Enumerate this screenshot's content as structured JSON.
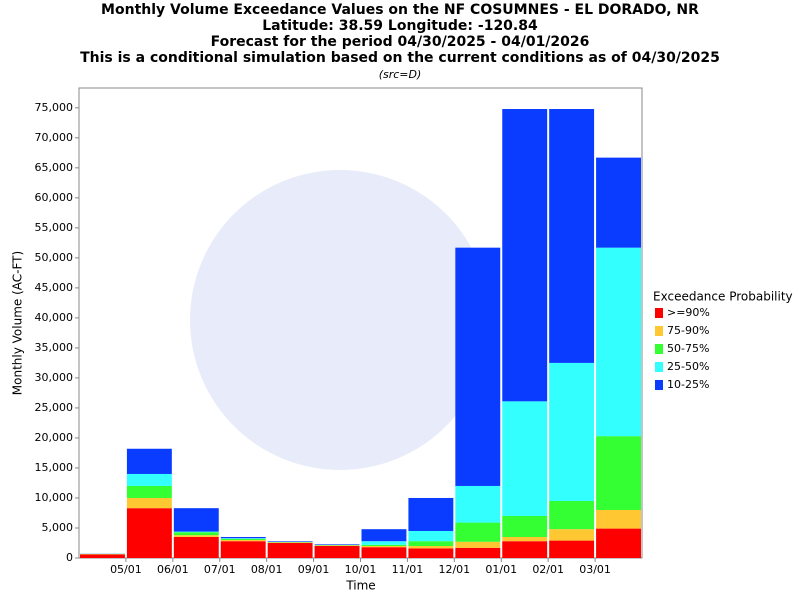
{
  "chart_data": {
    "type": "stacked_bar",
    "title": [
      "Monthly Volume Exceedance Values on the NF COSUMNES - EL DORADO, NR",
      "Latitude: 38.59 Longitude: -120.84",
      "Forecast for the period 04/30/2025 - 04/01/2026",
      "This is a conditional simulation based on the current conditions as of 04/30/2025"
    ],
    "subtitle": "(src=D)",
    "x_label": "Time",
    "y_label": "Monthly Volume (AC-FT)",
    "legend_title": "Exceedance Probability",
    "categories": [
      null,
      null,
      null,
      null,
      null,
      null,
      null,
      null,
      null,
      null,
      null,
      null
    ],
    "xtick_labels": [
      "05/01",
      "06/01",
      "07/01",
      "08/01",
      "09/01",
      "10/01",
      "11/01",
      "12/01",
      "01/01",
      "02/01",
      "03/01"
    ],
    "series": [
      {
        "name": ">=90%",
        "color": "#ff0000",
        "values": [
          600,
          8300,
          3500,
          2800,
          2500,
          2000,
          1800,
          1600,
          1700,
          2800,
          2900,
          4900
        ]
      },
      {
        "name": "75-90%",
        "color": "#ffc833",
        "values": [
          50,
          1700,
          300,
          200,
          100,
          100,
          200,
          400,
          1000,
          700,
          1900,
          3100
        ]
      },
      {
        "name": "50-75%",
        "color": "#33ff33",
        "values": [
          30,
          2000,
          500,
          200,
          50,
          50,
          200,
          800,
          3200,
          3500,
          4700,
          12300
        ]
      },
      {
        "name": "25-50%",
        "color": "#33ffff",
        "values": [
          20,
          2000,
          100,
          100,
          50,
          50,
          600,
          1700,
          6100,
          19100,
          23000,
          31400
        ]
      },
      {
        "name": "10-25%",
        "color": "#0a3cff",
        "values": [
          20,
          4200,
          3900,
          200,
          100,
          100,
          2000,
          5500,
          39700,
          48700,
          42300,
          15000
        ]
      }
    ],
    "ylim": [
      0,
      78300
    ],
    "yticks": [
      0,
      {
        "value": 5000,
        "label": "5,000"
      },
      {
        "value": 10000,
        "label": "10,000"
      },
      {
        "value": 15000,
        "label": "15,000"
      },
      {
        "value": 20000,
        "label": "20,000"
      },
      {
        "value": 25000,
        "label": "25,000"
      },
      {
        "value": 30000,
        "label": "30,000"
      },
      {
        "value": 35000,
        "label": "35,000"
      },
      {
        "value": 40000,
        "label": "40,000"
      },
      {
        "value": 45000,
        "label": "45,000"
      },
      {
        "value": 50000,
        "label": "50,000"
      },
      {
        "value": 55000,
        "label": "55,000"
      },
      {
        "value": 60000,
        "label": "60,000"
      },
      {
        "value": 65000,
        "label": "65,000"
      },
      {
        "value": 70000,
        "label": "70,000"
      },
      {
        "value": 75000,
        "label": "75,000"
      }
    ],
    "grid": false,
    "legend_position": "right"
  }
}
